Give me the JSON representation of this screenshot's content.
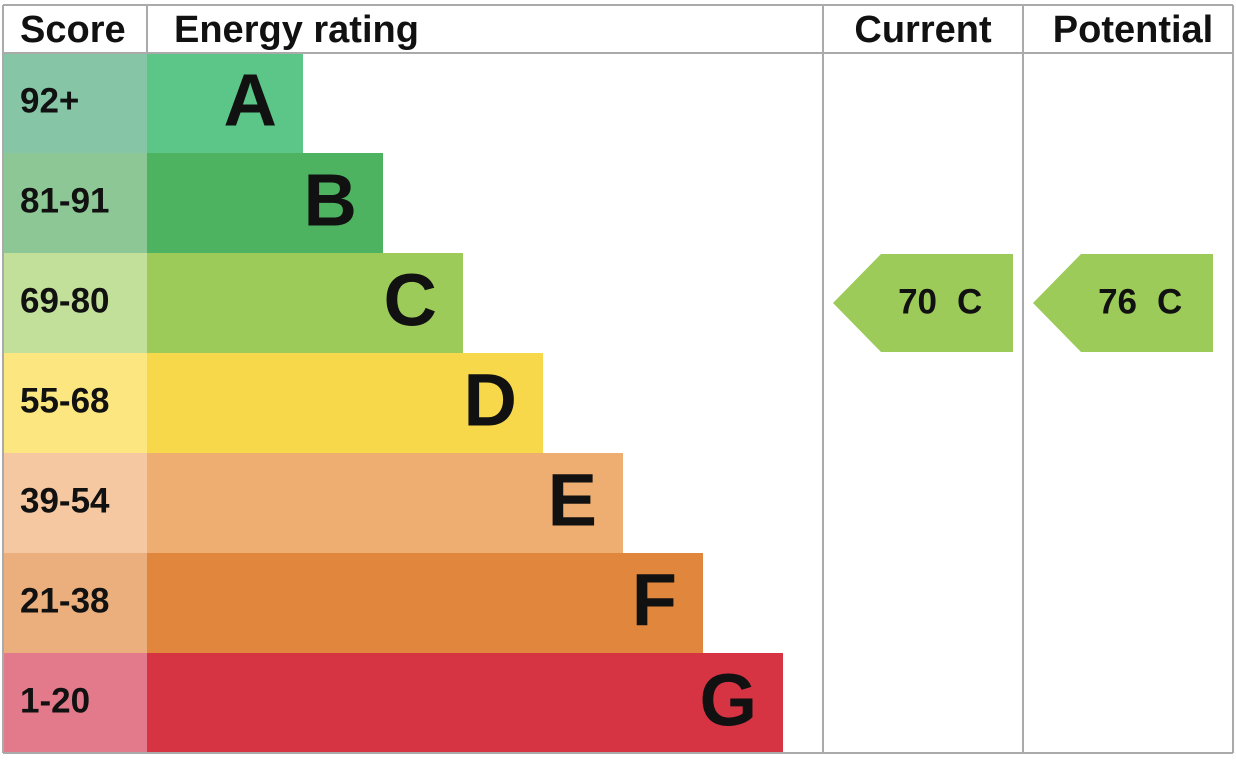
{
  "header": {
    "score": "Score",
    "energy_rating": "Energy rating",
    "current": "Current",
    "potential": "Potential"
  },
  "bands": [
    {
      "score": "92+",
      "letter": "A",
      "color": "#5bc687",
      "score_color": "#86c5a6"
    },
    {
      "score": "81-91",
      "letter": "B",
      "color": "#4db360",
      "score_color": "#8dc795"
    },
    {
      "score": "69-80",
      "letter": "C",
      "color": "#9dcb59",
      "score_color": "#c3e09a"
    },
    {
      "score": "55-68",
      "letter": "D",
      "color": "#f6d84a",
      "score_color": "#fbe67f"
    },
    {
      "score": "39-54",
      "letter": "E",
      "color": "#efae71",
      "score_color": "#f5c8a1"
    },
    {
      "score": "21-38",
      "letter": "F",
      "color": "#e1873d",
      "score_color": "#eaaf7c"
    },
    {
      "score": "1-20",
      "letter": "G",
      "color": "#d63443",
      "score_color": "#e27a8b"
    }
  ],
  "current": {
    "score": 70,
    "letter": "C"
  },
  "potential": {
    "score": 76,
    "letter": "C"
  }
}
